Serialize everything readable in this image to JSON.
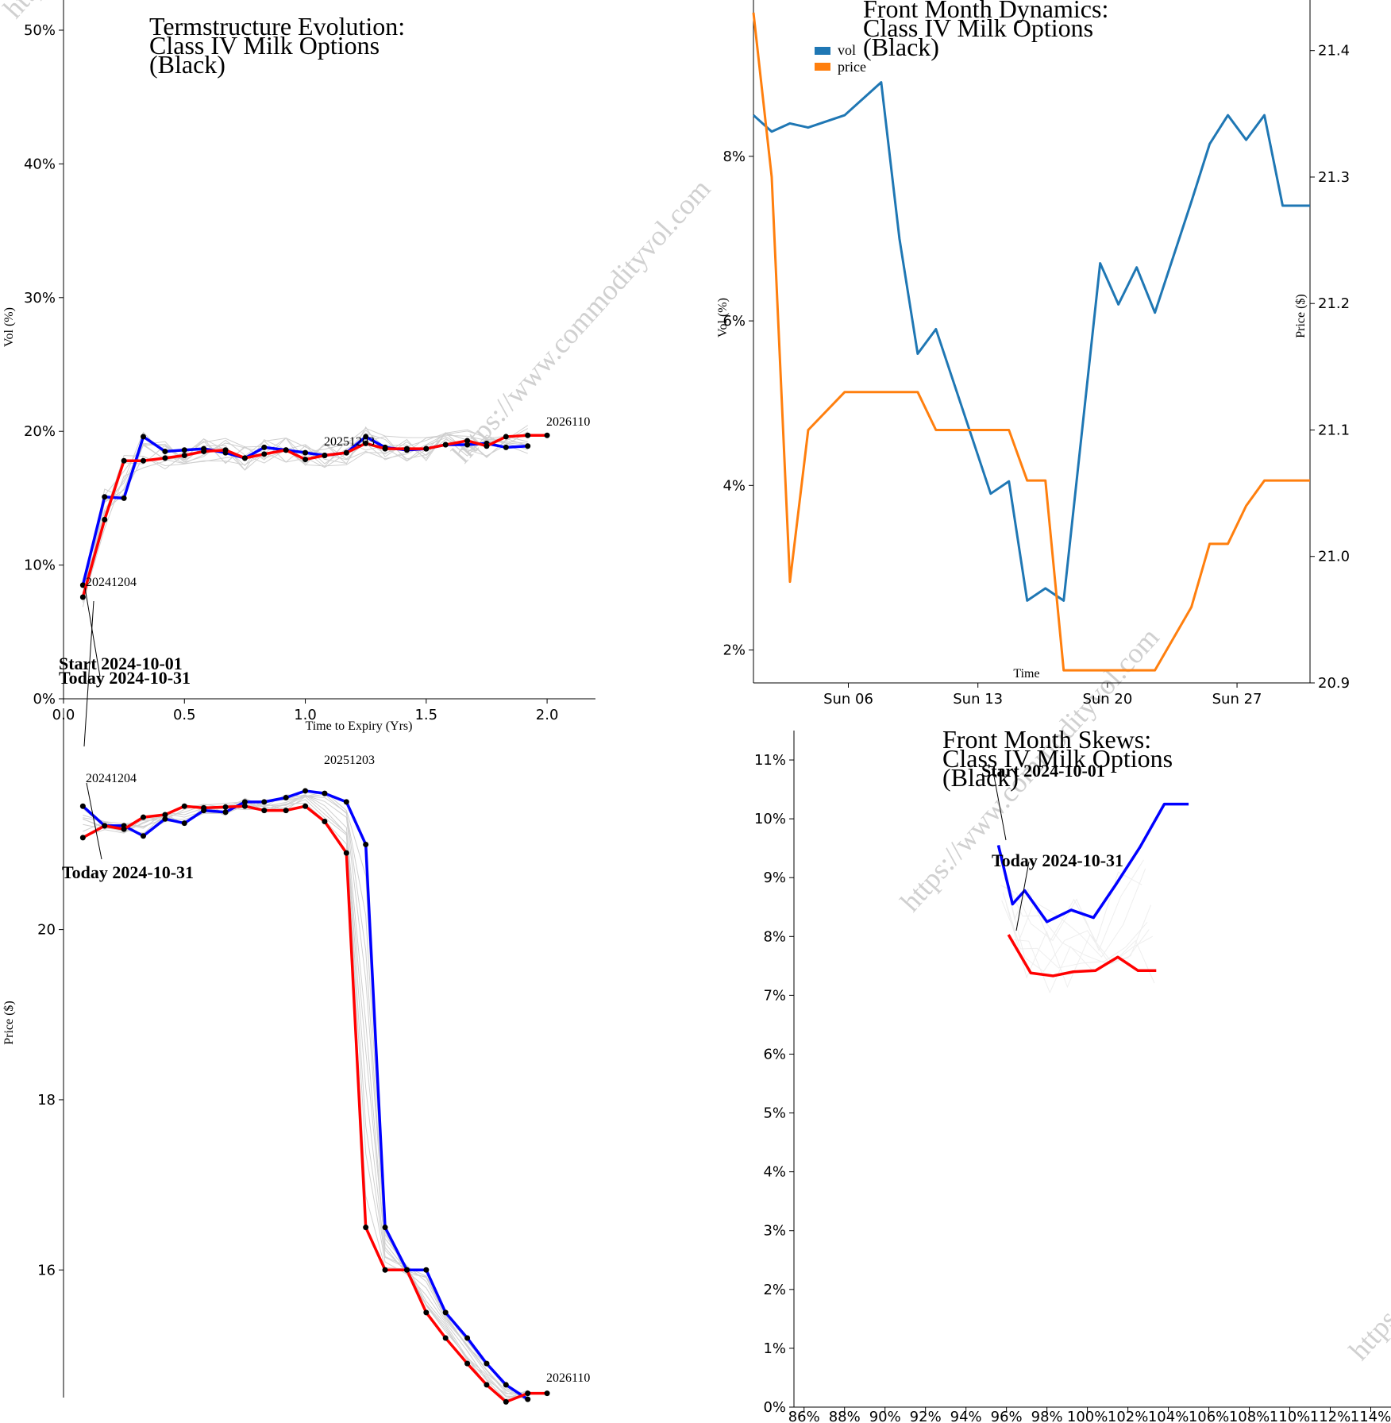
{
  "watermark": "https://www.commodityvol.com",
  "chart_data": [
    {
      "id": "termstructure",
      "type": "line",
      "title": [
        "Termstructure Evolution:",
        "Class IV Milk Options",
        "(Black)"
      ],
      "xlabel": "Time to Expiry (Yrs)",
      "ylabel": "Vol (%)",
      "xlim": [
        0,
        2.2
      ],
      "ylim": [
        0,
        50
      ],
      "xticks": [
        0.0,
        0.5,
        1.0,
        1.5,
        2.0
      ],
      "xtick_labels": [
        "0.0",
        "0.5",
        "1.0",
        "1.5",
        "2.0"
      ],
      "yticks": [
        0,
        10,
        20,
        30,
        40,
        50
      ],
      "ytick_labels": [
        "0%",
        "10%",
        "20%",
        "30%",
        "40%",
        "50%"
      ],
      "series": [
        {
          "name": "Start 2024-10-01",
          "color": "#0000ff",
          "x": [
            0.08,
            0.17,
            0.25,
            0.33,
            0.42,
            0.5,
            0.58,
            0.67,
            0.75,
            0.83,
            0.92,
            1.0,
            1.08,
            1.17,
            1.25,
            1.33,
            1.42,
            1.5,
            1.58,
            1.67,
            1.75,
            1.83,
            1.92
          ],
          "y": [
            8.5,
            15.1,
            15.0,
            19.6,
            18.5,
            18.6,
            18.7,
            18.4,
            18.0,
            18.8,
            18.6,
            18.4,
            18.2,
            18.4,
            19.6,
            18.8,
            18.6,
            18.7,
            19.0,
            19.0,
            19.1,
            18.8,
            18.9
          ]
        },
        {
          "name": "Today 2024-10-31",
          "color": "#ff0000",
          "x": [
            0.08,
            0.17,
            0.25,
            0.33,
            0.42,
            0.5,
            0.58,
            0.67,
            0.75,
            0.83,
            0.92,
            1.0,
            1.08,
            1.17,
            1.25,
            1.33,
            1.42,
            1.5,
            1.58,
            1.67,
            1.75,
            1.83,
            1.92,
            2.0
          ],
          "y": [
            7.6,
            13.4,
            17.8,
            17.8,
            18.0,
            18.2,
            18.5,
            18.6,
            18.0,
            18.3,
            18.6,
            17.9,
            18.2,
            18.4,
            19.1,
            18.7,
            18.7,
            18.7,
            19.0,
            19.3,
            18.9,
            19.6,
            19.7,
            19.7
          ]
        }
      ],
      "annotations": [
        {
          "text": "Start 2024-10-01",
          "x": 0.08,
          "y": 8.5
        },
        {
          "text": "Today 2024-10-31",
          "x": 0.08,
          "y": 7.6
        }
      ],
      "curve_labels": [
        "20241204",
        "20251203",
        "2026110"
      ]
    },
    {
      "id": "termstructure-price",
      "type": "line",
      "title": "",
      "xlabel": "",
      "ylabel": "Price ($)",
      "xlim": [
        0,
        2.2
      ],
      "ylim": [
        14.5,
        22.6
      ],
      "yticks": [
        16,
        18,
        20
      ],
      "ytick_labels": [
        "16",
        "18",
        "20"
      ],
      "series": [
        {
          "name": "Start 2024-10-01",
          "color": "#0000ff",
          "x": [
            0.08,
            0.17,
            0.25,
            0.33,
            0.42,
            0.5,
            0.58,
            0.67,
            0.75,
            0.83,
            0.92,
            1.0,
            1.08,
            1.17,
            1.25,
            1.33,
            1.42,
            1.5,
            1.58,
            1.67,
            1.75,
            1.83,
            1.92
          ],
          "y": [
            21.45,
            21.22,
            21.22,
            21.1,
            21.3,
            21.25,
            21.4,
            21.38,
            21.5,
            21.5,
            21.55,
            21.63,
            21.6,
            21.5,
            21.0,
            16.5,
            16.0,
            16.0,
            15.5,
            15.2,
            14.9,
            14.65,
            14.48
          ]
        },
        {
          "name": "Today 2024-10-31",
          "color": "#ff0000",
          "x": [
            0.08,
            0.17,
            0.25,
            0.33,
            0.42,
            0.5,
            0.58,
            0.67,
            0.75,
            0.83,
            0.92,
            1.0,
            1.08,
            1.17,
            1.25,
            1.33,
            1.42,
            1.5,
            1.58,
            1.67,
            1.75,
            1.83,
            1.92,
            2.0
          ],
          "y": [
            21.08,
            21.22,
            21.18,
            21.32,
            21.35,
            21.45,
            21.43,
            21.44,
            21.45,
            21.4,
            21.4,
            21.45,
            21.27,
            20.9,
            16.5,
            16.0,
            16.0,
            15.5,
            15.2,
            14.9,
            14.65,
            14.45,
            14.55,
            14.55
          ]
        }
      ],
      "annotations": [
        {
          "text": "Today 2024-10-31",
          "x": 0.08,
          "y": 21.08
        }
      ],
      "curve_labels": [
        "20241204",
        "20251203",
        "2026110"
      ]
    },
    {
      "id": "front-month-dynamics",
      "type": "line",
      "title": [
        "Front Month Dynamics:",
        "Class IV Milk Options",
        "(Black)"
      ],
      "xlabel": "Time",
      "ylabel": "Vol (%)",
      "ylabel_right": "Price ($)",
      "xlim": [
        1,
        31.5
      ],
      "ylim": [
        1.6,
        9.9
      ],
      "ylim_right": [
        20.9,
        21.44
      ],
      "xticks": [
        6.2,
        13.3,
        20.4,
        27.5
      ],
      "xtick_labels": [
        "Sun 06",
        "Sun 13",
        "Sun 20",
        "Sun 27"
      ],
      "yticks": [
        2,
        4,
        6,
        8
      ],
      "ytick_labels": [
        "2%",
        "4%",
        "6%",
        "8%"
      ],
      "yticks_right": [
        20.9,
        21.0,
        21.1,
        21.2,
        21.3,
        21.4
      ],
      "ytick_labels_right": [
        "20.9",
        "21.0",
        "21.1",
        "21.2",
        "21.3",
        "21.4"
      ],
      "legend": [
        {
          "label": "vol",
          "color": "#1f77b4"
        },
        {
          "label": "price",
          "color": "#ff7f0e"
        }
      ],
      "series": [
        {
          "name": "vol",
          "color": "#1f77b4",
          "axis": "left",
          "x": [
            1,
            2,
            3,
            4,
            6,
            7,
            8,
            9,
            10,
            11,
            14,
            15,
            16,
            17,
            18,
            20,
            21,
            22,
            23,
            25,
            26,
            27,
            28,
            29,
            30,
            31,
            31.5
          ],
          "y": [
            8.5,
            8.3,
            8.4,
            8.35,
            8.5,
            8.7,
            8.9,
            7.0,
            5.6,
            5.9,
            3.9,
            4.05,
            2.6,
            2.75,
            2.6,
            6.7,
            6.2,
            6.65,
            6.1,
            7.45,
            8.15,
            8.5,
            8.2,
            8.5,
            7.4,
            7.4,
            7.4
          ]
        },
        {
          "name": "price",
          "color": "#ff7f0e",
          "axis": "right",
          "x": [
            1,
            2,
            3,
            4,
            6,
            7,
            8,
            9,
            10,
            11,
            14,
            15,
            16,
            17,
            18,
            20,
            21,
            22,
            23,
            25,
            26,
            27,
            28,
            29,
            30,
            31,
            31.5
          ],
          "y": [
            21.43,
            21.3,
            20.98,
            21.1,
            21.13,
            21.13,
            21.13,
            21.13,
            21.13,
            21.1,
            21.1,
            21.1,
            21.06,
            21.06,
            20.91,
            20.91,
            20.91,
            20.91,
            20.91,
            20.96,
            21.01,
            21.01,
            21.04,
            21.06,
            21.06,
            21.06,
            21.06
          ]
        }
      ]
    },
    {
      "id": "front-month-skews",
      "type": "line",
      "title": [
        "Front Month Skews:",
        "Class IV Milk Options",
        "(Black)"
      ],
      "xlabel": "",
      "ylabel": "",
      "xlim": [
        85.5,
        115
      ],
      "ylim": [
        0,
        11.5
      ],
      "xticks": [
        86,
        88,
        90,
        92,
        94,
        96,
        98,
        100,
        102,
        104,
        106,
        108,
        110,
        112,
        114
      ],
      "xtick_labels": [
        "86%",
        "88%",
        "90%",
        "92%",
        "94%",
        "96%",
        "98%",
        "100%",
        "102%",
        "104%",
        "106%",
        "108%",
        "110%",
        "112%",
        "114%"
      ],
      "yticks": [
        0,
        1,
        2,
        3,
        4,
        5,
        6,
        7,
        8,
        9,
        10,
        11
      ],
      "ytick_labels": [
        "0%",
        "1%",
        "2%",
        "3%",
        "4%",
        "5%",
        "6%",
        "7%",
        "8%",
        "9%",
        "10%",
        "11%"
      ],
      "series": [
        {
          "name": "Start 2024-10-01",
          "color": "#0000ff",
          "x": [
            95.6,
            96.3,
            96.9,
            98.0,
            99.2,
            100.3,
            101.4,
            102.6,
            103.8,
            105.0
          ],
          "y": [
            9.55,
            8.55,
            8.78,
            8.25,
            8.45,
            8.32,
            8.88,
            9.52,
            10.25,
            10.25
          ]
        },
        {
          "name": "Today 2024-10-31",
          "color": "#ff0000",
          "x": [
            96.1,
            97.2,
            98.3,
            99.3,
            100.4,
            101.5,
            102.5,
            103.4
          ],
          "y": [
            8.03,
            7.38,
            7.33,
            7.4,
            7.42,
            7.65,
            7.42,
            7.42
          ]
        }
      ],
      "annotations": [
        {
          "text": "Start 2024-10-01",
          "x": 95.6,
          "y": 9.55
        },
        {
          "text": "Today 2024-10-31",
          "x": 96.1,
          "y": 8.03
        }
      ]
    }
  ]
}
